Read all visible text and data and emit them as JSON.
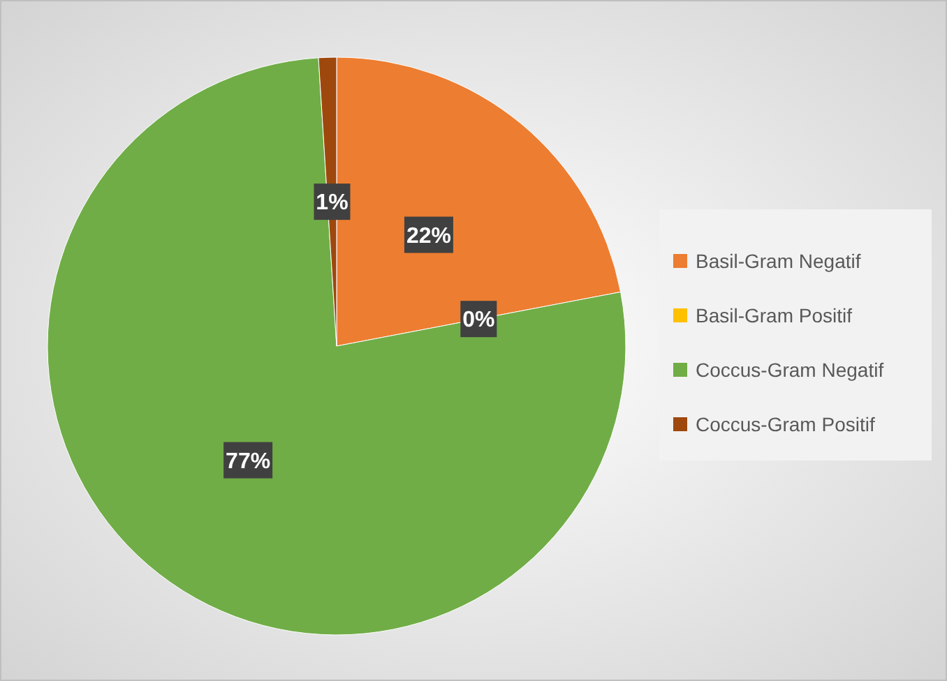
{
  "chart_data": {
    "type": "pie",
    "categories": [
      "Basil-Gram Negatif",
      "Basil-Gram Positif",
      "Coccus-Gram Negatif",
      "Coccus-Gram Positif"
    ],
    "values": [
      22,
      0,
      77,
      1
    ],
    "colors": [
      "#ed7d31",
      "#ffc000",
      "#70ad47",
      "#9e480e"
    ],
    "value_labels": [
      "22%",
      "0%",
      "77%",
      "1%"
    ],
    "legend": "right"
  }
}
